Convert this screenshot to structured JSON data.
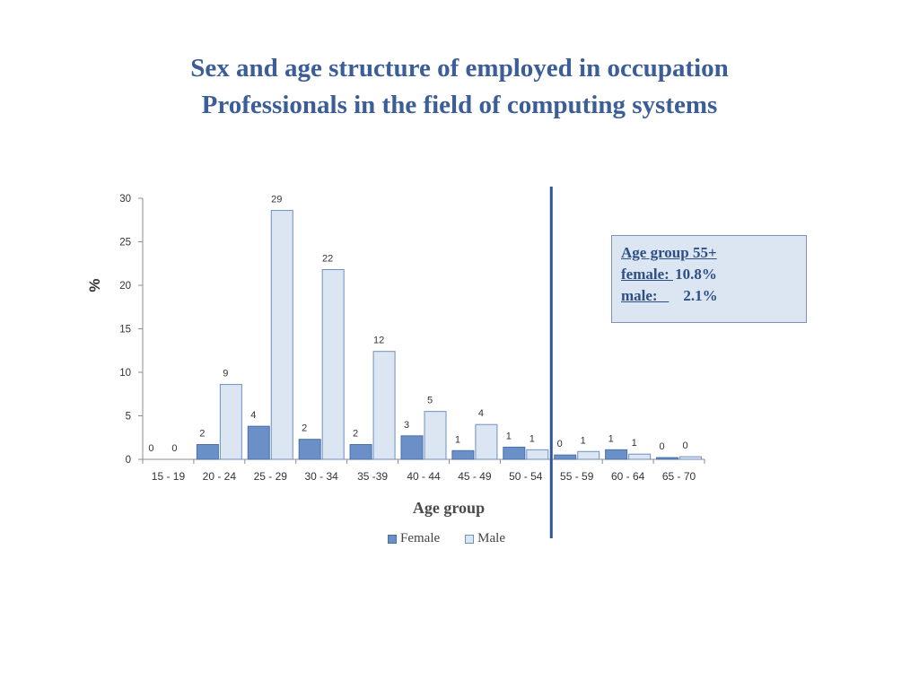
{
  "title_line1": "Sex and age structure of employed in occupation",
  "title_line2": "Professionals in the field of computing systems",
  "info_box": {
    "heading": "Age group 55+",
    "female_label": "female: ",
    "female_value": "10.8%",
    "male_label": "male:   ",
    "male_value": "2.1%"
  },
  "colors": {
    "female": "#6b90c8",
    "female_stroke": "#4a6fa8",
    "male": "#dce6f2",
    "male_stroke": "#6f8fbf",
    "divider": "#2f5597",
    "axis": "#8c8c8c"
  },
  "chart_data": {
    "type": "bar",
    "xlabel": "Age group",
    "ylabel": "%",
    "ylim": [
      0,
      30
    ],
    "yticks": [
      0,
      5,
      10,
      15,
      20,
      25,
      30
    ],
    "grid": false,
    "legend_position": "bottom",
    "categories": [
      "15 - 19",
      "20 - 24",
      "25 - 29",
      "30 - 34",
      "35 -39",
      "40 - 44",
      "45 - 49",
      "50 - 54",
      "55 - 59",
      "60 - 64",
      "65 - 70"
    ],
    "series": [
      {
        "name": "Female",
        "values": [
          0.0,
          1.7,
          3.8,
          2.3,
          1.7,
          2.7,
          1.0,
          1.4,
          0.5,
          1.1,
          0.2
        ],
        "labels": [
          "0",
          "2",
          "4",
          "2",
          "2",
          "3",
          "1",
          "1",
          "0",
          "1",
          "0"
        ]
      },
      {
        "name": "Male",
        "values": [
          0.0,
          8.6,
          28.6,
          21.8,
          12.4,
          5.5,
          4.0,
          1.1,
          0.9,
          0.6,
          0.3
        ],
        "labels": [
          "0",
          "9",
          "29",
          "22",
          "12",
          "5",
          "4",
          "1",
          "1",
          "1",
          "0"
        ]
      }
    ],
    "divider_after_category": "50 - 54"
  }
}
